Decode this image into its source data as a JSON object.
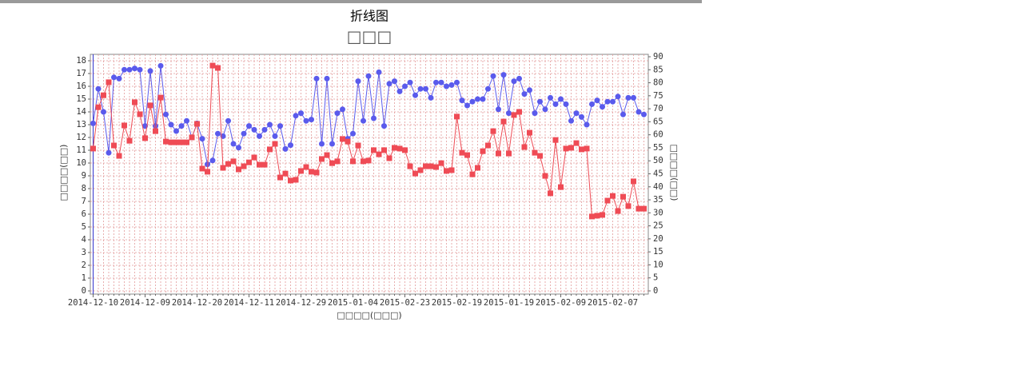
{
  "page_title": "折线图",
  "chart_data": {
    "type": "line",
    "title": "□□□",
    "x_label": "□□□□(□□□)",
    "y_label": "□□□□(□□)",
    "y2_label": "□□□□(□□)",
    "categories": [
      "2014-12-10",
      null,
      null,
      null,
      null,
      null,
      null,
      null,
      null,
      null,
      "2014-12-09",
      null,
      null,
      null,
      null,
      null,
      null,
      null,
      null,
      null,
      "2014-12-20",
      null,
      null,
      null,
      null,
      null,
      null,
      null,
      null,
      null,
      "2014-12-11",
      null,
      null,
      null,
      null,
      null,
      null,
      null,
      null,
      null,
      "2014-12-29",
      null,
      null,
      null,
      null,
      null,
      null,
      null,
      null,
      null,
      "2015-01-04",
      null,
      null,
      null,
      null,
      null,
      null,
      null,
      null,
      null,
      "2015-02-23",
      null,
      null,
      null,
      null,
      null,
      null,
      null,
      null,
      null,
      "2015-02-19",
      null,
      null,
      null,
      null,
      null,
      null,
      null,
      null,
      null,
      "2015-01-19",
      null,
      null,
      null,
      null,
      null,
      null,
      null,
      null,
      null,
      "2015-02-09",
      null,
      null,
      null,
      null,
      null,
      null,
      null,
      null,
      null,
      "2015-02-07",
      null,
      null,
      null,
      null,
      null,
      null
    ],
    "series": [
      {
        "color": "#5a5aec",
        "marker": "circle",
        "axis": "y",
        "values": [
          13.1,
          15.8,
          14.0,
          10.8,
          16.7,
          16.6,
          17.3,
          17.3,
          17.4,
          17.3,
          12.9,
          17.2,
          12.9,
          17.6,
          13.8,
          13.0,
          12.5,
          12.9,
          13.3,
          12.0,
          13.1,
          11.9,
          9.9,
          10.2,
          12.3,
          12.1,
          13.3,
          11.5,
          11.2,
          12.3,
          12.9,
          12.6,
          12.1,
          12.6,
          13.0,
          12.1,
          12.9,
          11.1,
          11.4,
          13.7,
          13.9,
          13.3,
          13.4,
          16.6,
          11.5,
          16.6,
          11.5,
          13.9,
          14.2,
          11.9,
          12.3,
          16.4,
          13.3,
          16.8,
          13.5,
          17.1,
          12.9,
          16.2,
          16.4,
          15.6,
          16.0,
          16.3,
          15.3,
          15.8,
          15.8,
          15.1,
          16.3,
          16.3,
          16.0,
          16.1,
          16.3,
          14.9,
          14.5,
          14.8,
          15.0,
          15.0,
          15.8,
          16.8,
          14.2,
          16.9,
          13.9,
          16.4,
          16.6,
          15.4,
          15.7,
          13.9,
          14.8,
          14.2,
          15.1,
          14.6,
          15.0,
          14.6,
          13.3,
          13.9,
          13.6,
          13.0,
          14.6,
          14.9,
          14.4,
          14.8,
          14.8,
          15.2,
          13.8,
          15.1,
          15.1,
          14.0,
          13.8
        ]
      },
      {
        "color": "#ef4b55",
        "marker": "square",
        "axis": "y2",
        "values": [
          54.7,
          70.6,
          75.2,
          80.2,
          55.9,
          51.9,
          63.6,
          57.7,
          72.5,
          67.9,
          58.7,
          71.3,
          61.4,
          74.3,
          57.4,
          57.1,
          57.1,
          57.1,
          57.1,
          59.0,
          64.2,
          47.0,
          45.8,
          86.6,
          85.7,
          47.3,
          48.8,
          49.8,
          46.7,
          47.9,
          49.4,
          51.3,
          48.5,
          48.5,
          54.4,
          56.5,
          43.6,
          45.1,
          42.4,
          42.7,
          46.1,
          47.6,
          45.8,
          45.5,
          50.7,
          52.2,
          49.1,
          49.8,
          58.4,
          57.4,
          49.8,
          55.9,
          49.8,
          50.1,
          54.1,
          52.5,
          54.1,
          51.0,
          55.0,
          54.7,
          54.1,
          47.9,
          45.1,
          46.4,
          47.9,
          47.9,
          47.6,
          49.1,
          46.1,
          46.4,
          67.0,
          53.1,
          52.2,
          44.8,
          47.3,
          53.7,
          55.9,
          61.4,
          52.8,
          65.1,
          52.8,
          67.6,
          68.8,
          55.3,
          60.8,
          53.1,
          51.9,
          44.2,
          37.5,
          58.0,
          39.9,
          54.7,
          55.0,
          56.8,
          54.4,
          54.7,
          28.6,
          28.9,
          29.2,
          34.7,
          36.5,
          30.7,
          36.2,
          32.6,
          42.1,
          31.6,
          31.6
        ]
      }
    ],
    "ylim": [
      0,
      18
    ],
    "yticks": [
      0,
      1,
      2,
      3,
      4,
      5,
      6,
      7,
      8,
      9,
      10,
      11,
      12,
      13,
      14,
      15,
      16,
      17,
      18
    ],
    "y2lim": [
      0,
      90
    ],
    "y2ticks": [
      0,
      5,
      10,
      15,
      20,
      25,
      30,
      35,
      40,
      45,
      50,
      55,
      60,
      65,
      70,
      75,
      80,
      85,
      90
    ],
    "grid": true
  }
}
